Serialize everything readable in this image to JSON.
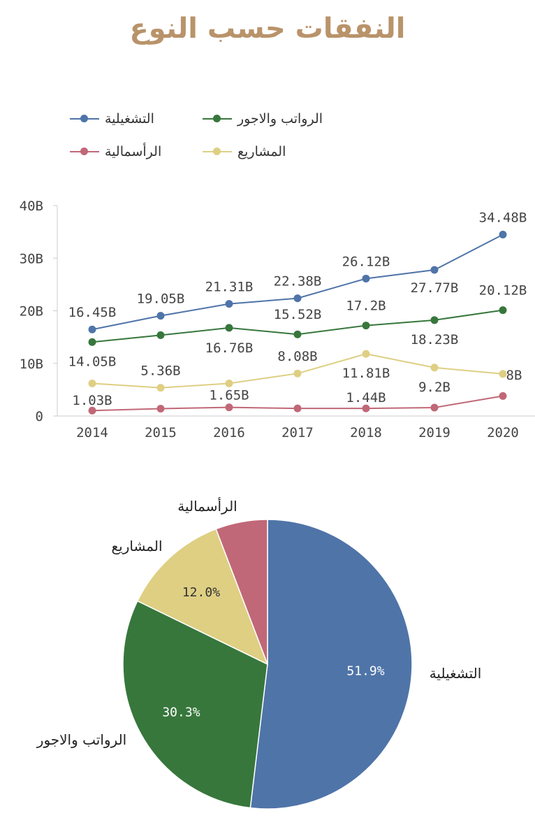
{
  "title": "النفقات حسب النوع",
  "colors": {
    "operational": "#4f74a8",
    "salaries": "#37773c",
    "capital": "#c06877",
    "projects": "#decf83",
    "title": "#b9936a",
    "axis": "#cccccc",
    "text": "#444444"
  },
  "chart_data": [
    {
      "type": "line",
      "x": [
        "2014",
        "2015",
        "2016",
        "2017",
        "2018",
        "2019",
        "2020"
      ],
      "ylim": [
        0,
        40
      ],
      "yticks": [
        "0",
        "10B",
        "20B",
        "30B",
        "40B"
      ],
      "series": [
        {
          "key": "operational",
          "name": "التشغيلية",
          "values": [
            16.45,
            19.05,
            21.31,
            22.38,
            26.12,
            27.77,
            34.48
          ],
          "labels": [
            "16.45B",
            "19.05B",
            "21.31B",
            "22.38B",
            "26.12B",
            "27.77B",
            "34.48B"
          ]
        },
        {
          "key": "salaries",
          "name": "الرواتب والاجور",
          "values": [
            14.05,
            15.36,
            16.76,
            15.52,
            17.2,
            18.23,
            20.12
          ],
          "labels": [
            "14.05B",
            "",
            "16.76B",
            "15.52B",
            "17.2B",
            "18.23B",
            "20.12B"
          ]
        },
        {
          "key": "projects",
          "name": "المشاريع",
          "values": [
            6.2,
            5.36,
            6.2,
            8.08,
            11.81,
            9.2,
            8.0
          ],
          "labels": [
            "",
            "5.36B",
            "",
            "8.08B",
            "11.81B",
            "9.2B",
            "8B"
          ]
        },
        {
          "key": "capital",
          "name": "الرأسمالية",
          "values": [
            1.03,
            1.4,
            1.65,
            1.44,
            1.44,
            1.6,
            3.8
          ],
          "labels": [
            "1.03B",
            "",
            "1.65B",
            "",
            "1.44B",
            "",
            ""
          ]
        }
      ]
    },
    {
      "type": "pie",
      "slices": [
        {
          "key": "operational",
          "name": "التشغيلية",
          "value": 51.9,
          "label": "51.9%"
        },
        {
          "key": "salaries",
          "name": "الرواتب والاجور",
          "value": 30.3,
          "label": "30.3%"
        },
        {
          "key": "projects",
          "name": "المشاريع",
          "value": 12.0,
          "label": "12.0%"
        },
        {
          "key": "capital",
          "name": "الرأسمالية",
          "value": 5.8,
          "label": ""
        }
      ]
    }
  ]
}
